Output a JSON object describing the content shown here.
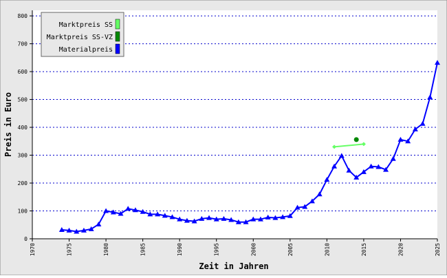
{
  "chart_data": {
    "type": "line",
    "xlabel": "Zeit in Jahren",
    "ylabel": "Preis in Euro",
    "xlim": [
      1970,
      2025
    ],
    "ylim": [
      0,
      820
    ],
    "xticks": [
      1970,
      1975,
      1980,
      1985,
      1990,
      1995,
      2000,
      2005,
      2010,
      2015,
      2020,
      2025
    ],
    "yticks": [
      0,
      100,
      200,
      300,
      400,
      500,
      600,
      700,
      800
    ],
    "grid": true,
    "legend": "upper left",
    "series": [
      {
        "name": "Marktpreis SS",
        "color": "#66ff66",
        "marker": "diamond",
        "x": [
          2011,
          2015
        ],
        "values": [
          330,
          340
        ]
      },
      {
        "name": "Marktpreis SS-VZ",
        "color": "#008800",
        "marker": "circle",
        "x": [
          2014
        ],
        "values": [
          356
        ]
      },
      {
        "name": "Materialpreis",
        "color": "#0000ff",
        "marker": "triangle",
        "x": [
          1974,
          1975,
          1976,
          1977,
          1978,
          1979,
          1980,
          1981,
          1982,
          1983,
          1984,
          1985,
          1986,
          1987,
          1988,
          1989,
          1990,
          1991,
          1992,
          1993,
          1994,
          1995,
          1996,
          1997,
          1998,
          1999,
          2000,
          2001,
          2002,
          2003,
          2004,
          2005,
          2006,
          2007,
          2008,
          2009,
          2010,
          2011,
          2012,
          2013,
          2014,
          2015,
          2016,
          2017,
          2018,
          2019,
          2020,
          2021,
          2022,
          2023,
          2024,
          2025
        ],
        "values": [
          32,
          30,
          26,
          30,
          35,
          52,
          100,
          95,
          90,
          108,
          103,
          97,
          88,
          88,
          83,
          78,
          70,
          65,
          63,
          72,
          75,
          70,
          72,
          68,
          60,
          60,
          70,
          70,
          77,
          75,
          78,
          82,
          112,
          115,
          135,
          160,
          212,
          260,
          298,
          245,
          220,
          240,
          260,
          258,
          248,
          287,
          356,
          350,
          393,
          413,
          508,
          632
        ]
      }
    ]
  }
}
